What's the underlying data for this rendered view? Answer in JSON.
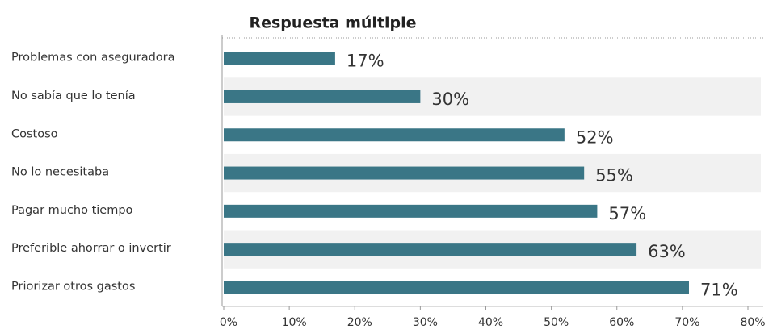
{
  "chart_data": {
    "type": "barh",
    "title": "Respuesta múltiple",
    "categories": [
      "Problemas con aseguradora",
      "No sabía que lo tenía",
      "Costoso",
      "No lo necesitaba",
      "Pagar mucho tiempo",
      "Preferible ahorrar o invertir",
      "Priorizar otros gastos"
    ],
    "values": [
      17,
      30,
      52,
      55,
      57,
      63,
      71
    ],
    "value_labels": [
      "17%",
      "30%",
      "52%",
      "55%",
      "57%",
      "63%",
      "71%"
    ],
    "color": "#3a7686",
    "xlim": [
      0,
      80
    ],
    "xticks": [
      {
        "value": 0,
        "label": "0%"
      },
      {
        "value": 10,
        "label": "10%"
      },
      {
        "value": 20,
        "label": "20%"
      },
      {
        "value": 30,
        "label": "30%"
      },
      {
        "value": 40,
        "label": "40%"
      },
      {
        "value": 50,
        "label": "50%"
      },
      {
        "value": 60,
        "label": "60%"
      },
      {
        "value": 70,
        "label": "70%"
      },
      {
        "value": 80,
        "label": "80%"
      }
    ]
  }
}
